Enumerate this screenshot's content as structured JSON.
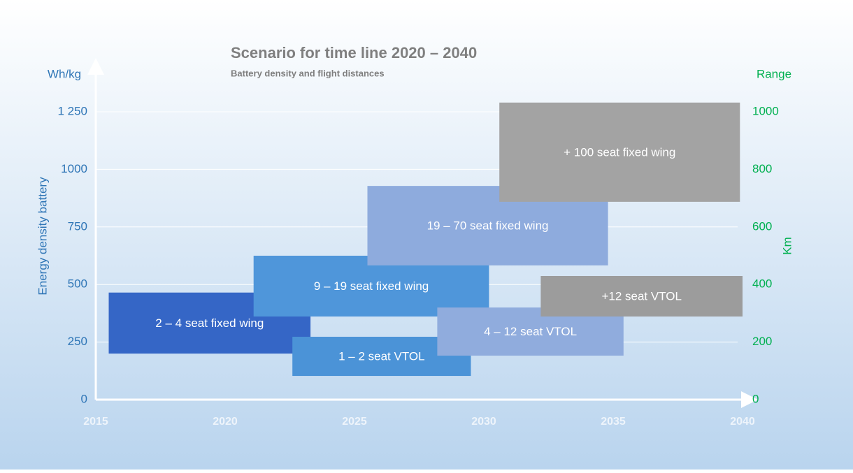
{
  "chart_data": {
    "type": "range_bar",
    "title": "Scenario for time line 2020 – 2040",
    "subtitle": "Battery density and flight distances",
    "y_unit": "Wh/kg",
    "y_label": "Energy density battery",
    "y2_unit": "Range",
    "y2_label": "Km",
    "xlim": [
      2015,
      2040
    ],
    "xticks": [
      2015,
      2020,
      2025,
      2030,
      2035,
      2040
    ],
    "ylim": [
      0,
      1250
    ],
    "yticks": [
      0,
      250,
      500,
      750,
      1000,
      {
        "value": 1250,
        "label": "1 250"
      }
    ],
    "y2lim": [
      0,
      1000
    ],
    "y2ticks": [
      0,
      200,
      400,
      600,
      800,
      1000
    ],
    "grid": true,
    "series": [
      {
        "name": "2 – 4 seat fixed wing",
        "color": "#3566c6",
        "x": [
          2015.5,
          2023.3
        ],
        "values": [
          200,
          465
        ]
      },
      {
        "name": "9 – 19 seat fixed wing",
        "color": "#4f96da",
        "x": [
          2021.1,
          2030.2
        ],
        "values": [
          361,
          625
        ]
      },
      {
        "name": "1 – 2 seat VTOL",
        "color": "#4b93d7",
        "x": [
          2022.6,
          2029.5
        ],
        "values": [
          103,
          273
        ]
      },
      {
        "name": "19 – 70 seat fixed wing",
        "color": "#8eabdd",
        "x": [
          2025.5,
          2034.8
        ],
        "values": [
          583,
          928
        ]
      },
      {
        "name": "4 – 12 seat VTOL",
        "color": "#90acdd",
        "x": [
          2028.2,
          2035.4
        ],
        "values": [
          191,
          400
        ]
      },
      {
        "name": "+ 100 seat fixed wing",
        "color": "#a3a3a3",
        "x": [
          2030.6,
          2039.9
        ],
        "values": [
          859,
          1290
        ]
      },
      {
        "name": "+12 seat VTOL",
        "color": "#9c9c9c",
        "x": [
          2032.2,
          2040
        ],
        "values": [
          361,
          537
        ]
      }
    ]
  }
}
